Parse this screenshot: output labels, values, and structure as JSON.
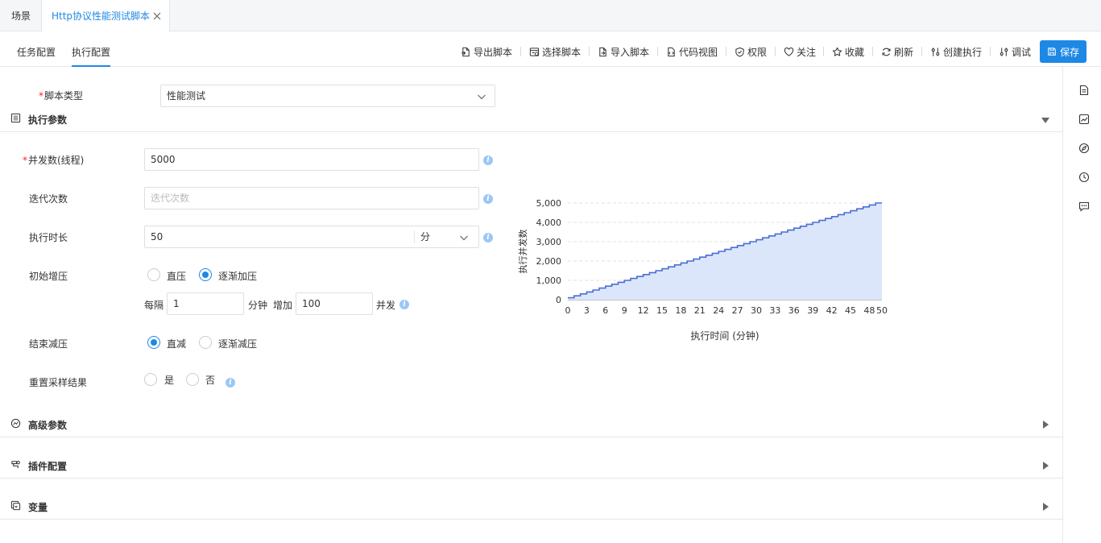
{
  "tabs": [
    {
      "label": "场景"
    },
    {
      "label": "Http协议性能测试脚本"
    }
  ],
  "subtabs": [
    {
      "label": "任务配置"
    },
    {
      "label": "执行配置"
    }
  ],
  "toolbar": {
    "export_label": "导出脚本",
    "select_label": "选择脚本",
    "import_label": "导入脚本",
    "code_view_label": "代码视图",
    "permission_label": "权限",
    "follow_label": "关注",
    "favorite_label": "收藏",
    "refresh_label": "刷新",
    "create_exec_label": "创建执行",
    "debug_label": "调试",
    "save_label": "保存"
  },
  "form": {
    "script_type_label": "脚本类型",
    "script_type_value": "性能测试",
    "exec_params_title": "执行参数",
    "concurrency_label": "并发数(线程)",
    "concurrency_value": "5000",
    "iterations_label": "迭代次数",
    "iterations_placeholder": "迭代次数",
    "duration_label": "执行时长",
    "duration_value": "50",
    "duration_unit": "分",
    "ramp_up_label": "初始增压",
    "ramp_up_options": [
      "直压",
      "逐渐加压"
    ],
    "ramp_up_selected": "逐渐加压",
    "every_label": "每隔",
    "every_value": "1",
    "minute_label": "分钟",
    "increase_label": "增加",
    "increase_value": "100",
    "concurrent_label": "并发",
    "ramp_down_label": "结束减压",
    "ramp_down_options": [
      "直减",
      "逐渐减压"
    ],
    "ramp_down_selected": "直减",
    "reset_label": "重置采样结果",
    "reset_options": [
      "是",
      "否"
    ],
    "reset_selected": ""
  },
  "sections": {
    "advanced": "高级参数",
    "plugins": "插件配置",
    "variables": "变量"
  },
  "chart_data": {
    "type": "area",
    "ylabel": "执行并发数",
    "xlabel": "执行时间 (分钟)",
    "x_ticks": [
      "0",
      "3",
      "6",
      "9",
      "12",
      "15",
      "18",
      "21",
      "24",
      "27",
      "30",
      "33",
      "36",
      "39",
      "42",
      "45",
      "48",
      "50"
    ],
    "y_ticks": [
      "0",
      "1,000",
      "2,000",
      "3,000",
      "4,000",
      "5,000"
    ],
    "xlim": [
      0,
      50
    ],
    "ylim": [
      0,
      5000
    ],
    "step": "stepped, +100 concurrency every 1 minute",
    "x": [
      0,
      1,
      2,
      3,
      4,
      5,
      6,
      7,
      8,
      9,
      10,
      11,
      12,
      13,
      14,
      15,
      16,
      17,
      18,
      19,
      20,
      21,
      22,
      23,
      24,
      25,
      26,
      27,
      28,
      29,
      30,
      31,
      32,
      33,
      34,
      35,
      36,
      37,
      38,
      39,
      40,
      41,
      42,
      43,
      44,
      45,
      46,
      47,
      48,
      49,
      50
    ],
    "values": [
      100,
      200,
      300,
      400,
      500,
      600,
      700,
      800,
      900,
      1000,
      1100,
      1200,
      1300,
      1400,
      1500,
      1600,
      1700,
      1800,
      1900,
      2000,
      2100,
      2200,
      2300,
      2400,
      2500,
      2600,
      2700,
      2800,
      2900,
      3000,
      3100,
      3200,
      3300,
      3400,
      3500,
      3600,
      3700,
      3800,
      3900,
      4000,
      4100,
      4200,
      4300,
      4400,
      4500,
      4600,
      4700,
      4800,
      4900,
      5000,
      5000
    ],
    "line_color": "#4a6fd0",
    "fill_color": "#dce6fb",
    "grid": true
  }
}
